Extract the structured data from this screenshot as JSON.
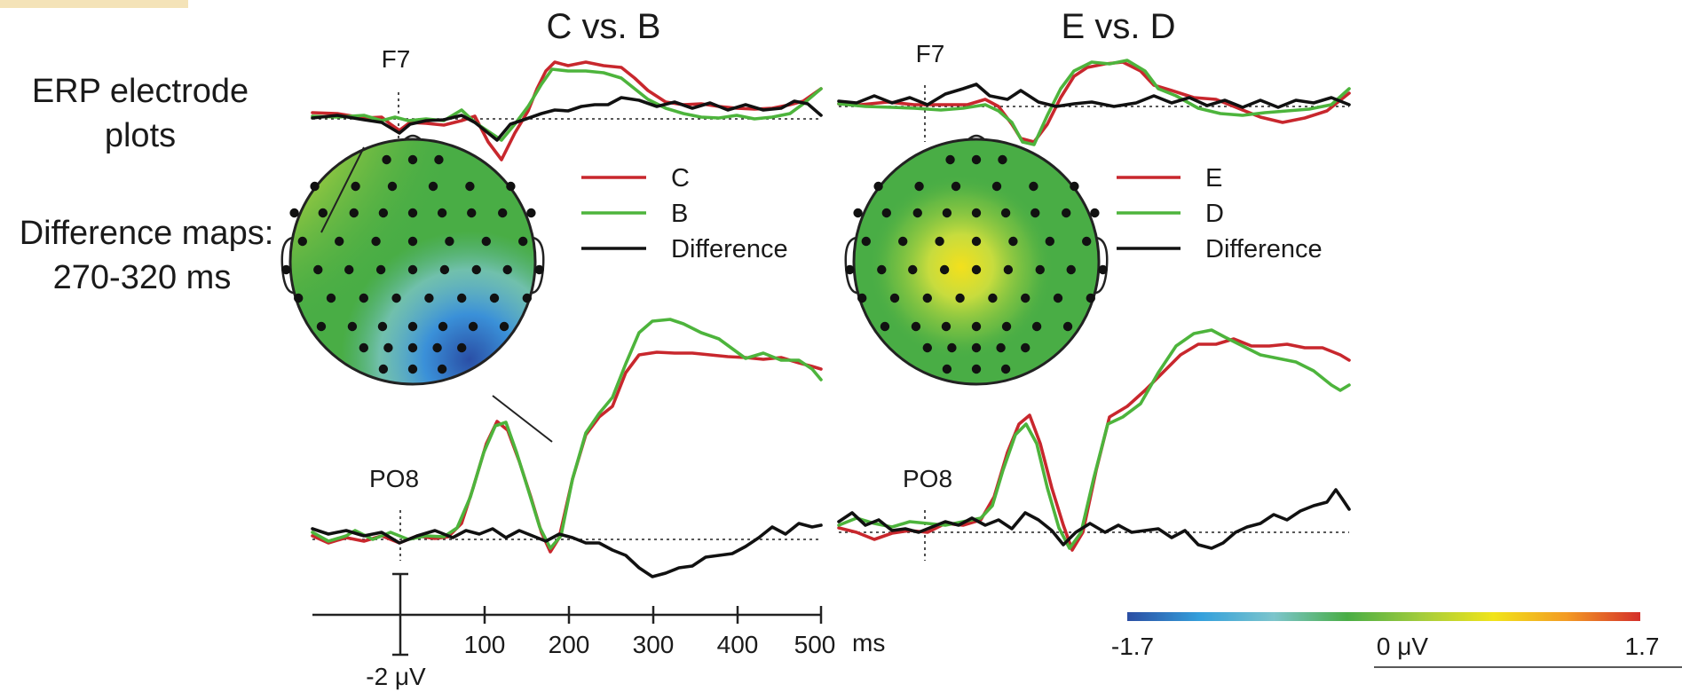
{
  "panels": [
    {
      "title": "C vs. B",
      "top_electrode": "F7",
      "bottom_electrode": "PO8",
      "legend": [
        {
          "label": "C",
          "color": "#c8272d"
        },
        {
          "label": "B",
          "color": "#4db43c"
        },
        {
          "label": "Difference",
          "color": "#111111"
        }
      ]
    },
    {
      "title": "E vs. D",
      "top_electrode": "F7",
      "bottom_electrode": "PO8",
      "legend": [
        {
          "label": "E",
          "color": "#c8272d"
        },
        {
          "label": "D",
          "color": "#4db43c"
        },
        {
          "label": "Difference",
          "color": "#111111"
        }
      ]
    }
  ],
  "side_labels": {
    "erp_line1": "ERP electrode",
    "erp_line2": "plots",
    "maps_line1": "Difference maps:",
    "maps_line2": "270-320 ms"
  },
  "time_axis": {
    "ticks": [
      "100",
      "200",
      "300",
      "400",
      "500"
    ],
    "unit": "ms",
    "amplitude_scale": "-2 μV"
  },
  "colorbar": {
    "min_label": "-1.7",
    "zero_label": "0 μV",
    "max_label": "1.7",
    "range": [
      -1.7,
      1.7
    ],
    "colors": [
      "#2b4ea3",
      "#34a0dc",
      "#7cc5cc",
      "#49ad45",
      "#a2cc3c",
      "#f1e41a",
      "#f39a24",
      "#d42f2a"
    ]
  },
  "icons": {
    "heads": "scalp-topography-head-icon"
  }
}
